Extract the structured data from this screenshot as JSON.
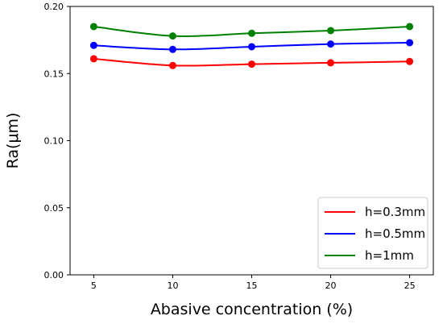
{
  "chart_data": {
    "type": "line",
    "xlabel": "Abasive concentration (%)",
    "ylabel": "Ra(μm)",
    "x": [
      5,
      10,
      15,
      20,
      25
    ],
    "xlim": [
      3.5,
      26.5
    ],
    "ylim": [
      0.0,
      0.2
    ],
    "xticks": [
      5,
      10,
      15,
      20,
      25
    ],
    "xtick_labels": [
      "5",
      "10",
      "15",
      "20",
      "25"
    ],
    "yticks": [
      0.0,
      0.05,
      0.1,
      0.15,
      0.2
    ],
    "ytick_labels": [
      "0.00",
      "0.05",
      "0.10",
      "0.15",
      "0.20"
    ],
    "grid": false,
    "legend_position": "lower-right",
    "series": [
      {
        "name": "h=0.3mm",
        "color": "#ff0000",
        "values": [
          0.161,
          0.156,
          0.157,
          0.158,
          0.159
        ]
      },
      {
        "name": "h=0.5mm",
        "color": "#0000ff",
        "values": [
          0.171,
          0.168,
          0.17,
          0.172,
          0.173
        ]
      },
      {
        "name": "h=1mm",
        "color": "#008000",
        "values": [
          0.185,
          0.178,
          0.18,
          0.182,
          0.185
        ]
      }
    ]
  }
}
